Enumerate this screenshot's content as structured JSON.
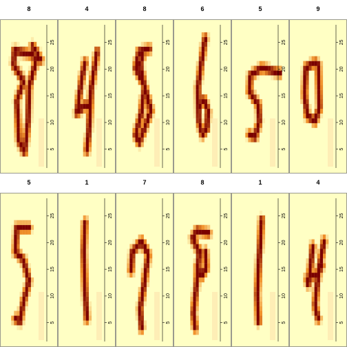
{
  "chart_data": {
    "type": "heatmap",
    "layout": {
      "rows": 2,
      "cols": 6
    },
    "y_ticks": [
      5,
      10,
      15,
      20,
      25
    ],
    "grid": false,
    "colormap": {
      "low": "#ffffc4",
      "mid": "#f0902a",
      "high": "#7a0000"
    },
    "panels": [
      {
        "title": "8",
        "strokes": [
          [
            0.78,
            0.76,
            0.55,
            0.8,
            0.2,
            0.83,
            0.18,
            0.72,
            0.4,
            0.6,
            0.25,
            0.45,
            0.3,
            0.15,
            0.42,
            0.07,
            0.5,
            0.3,
            0.52,
            0.55,
            0.62,
            0.68,
            0.72,
            0.8,
            0.6,
            0.86
          ]
        ]
      },
      {
        "title": "4",
        "strokes": [
          [
            0.48,
            0.74,
            0.4,
            0.6,
            0.3,
            0.36
          ],
          [
            0.3,
            0.36,
            0.48,
            0.42,
            0.58,
            0.42
          ],
          [
            0.75,
            0.82,
            0.62,
            0.55,
            0.56,
            0.2,
            0.52,
            0.08
          ]
        ]
      },
      {
        "title": "8",
        "strokes": [
          [
            0.62,
            0.84,
            0.4,
            0.82,
            0.32,
            0.7,
            0.52,
            0.56,
            0.66,
            0.38,
            0.4,
            0.14,
            0.32,
            0.2,
            0.44,
            0.35,
            0.52,
            0.55,
            0.42,
            0.72,
            0.48,
            0.8
          ]
        ]
      },
      {
        "title": "6",
        "strokes": [
          [
            0.58,
            0.92,
            0.5,
            0.75,
            0.42,
            0.55,
            0.44,
            0.3,
            0.52,
            0.2,
            0.62,
            0.25,
            0.64,
            0.38,
            0.55,
            0.46,
            0.46,
            0.42
          ]
        ]
      },
      {
        "title": "5",
        "strokes": [
          [
            0.95,
            0.66,
            0.55,
            0.7,
            0.3,
            0.64,
            0.28,
            0.52,
            0.48,
            0.42,
            0.5,
            0.3,
            0.4,
            0.18,
            0.28,
            0.2
          ]
        ]
      },
      {
        "title": "9",
        "strokes": [
          [
            0.45,
            0.74,
            0.25,
            0.7,
            0.22,
            0.5,
            0.28,
            0.34,
            0.45,
            0.3,
            0.55,
            0.4,
            0.52,
            0.72,
            0.45,
            0.74
          ]
        ]
      },
      {
        "title": "5",
        "strokes": [
          [
            0.52,
            0.8,
            0.25,
            0.8,
            0.22,
            0.62,
            0.4,
            0.56,
            0.52,
            0.4,
            0.4,
            0.25,
            0.32,
            0.1,
            0.22,
            0.12
          ]
        ]
      },
      {
        "title": "1",
        "strokes": [
          [
            0.48,
            0.84,
            0.45,
            0.62,
            0.48,
            0.35,
            0.52,
            0.12
          ]
        ]
      },
      {
        "title": "7",
        "strokes": [
          [
            0.22,
            0.48,
            0.25,
            0.62,
            0.45,
            0.7,
            0.6,
            0.6,
            0.5,
            0.36,
            0.42,
            0.2,
            0.45,
            0.05
          ]
        ]
      },
      {
        "title": "8",
        "strokes": [
          [
            0.65,
            0.76,
            0.4,
            0.78,
            0.3,
            0.72,
            0.45,
            0.62,
            0.42,
            0.5,
            0.38,
            0.35,
            0.32,
            0.16,
            0.36,
            0.05
          ],
          [
            0.58,
            0.62,
            0.6,
            0.5,
            0.5,
            0.44,
            0.4,
            0.5
          ]
        ]
      },
      {
        "title": "1",
        "strokes": [
          [
            0.55,
            0.86,
            0.5,
            0.6,
            0.45,
            0.3,
            0.48,
            0.1
          ]
        ]
      },
      {
        "title": "4",
        "strokes": [
          [
            0.4,
            0.66,
            0.35,
            0.5,
            0.3,
            0.38
          ],
          [
            0.28,
            0.42,
            0.52,
            0.46,
            0.6,
            0.52
          ],
          [
            0.65,
            0.7,
            0.52,
            0.45,
            0.45,
            0.22,
            0.52,
            0.12
          ]
        ]
      }
    ]
  }
}
